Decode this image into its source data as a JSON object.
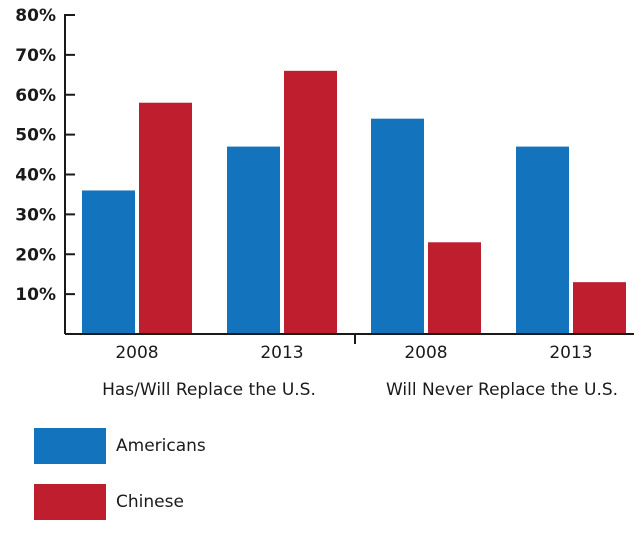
{
  "chart_data": {
    "type": "bar",
    "ylim": [
      0,
      80
    ],
    "yticks": [
      "10%",
      "20%",
      "30%",
      "40%",
      "50%",
      "60%",
      "70%",
      "80%"
    ],
    "categories": [
      "2008",
      "2013",
      "2008",
      "2013"
    ],
    "groups": [
      "Has/Will Replace the U.S.",
      "Will Never Replace the U.S."
    ],
    "series": [
      {
        "name": "Americans",
        "color": "#1473bd",
        "values": [
          36,
          47,
          54,
          47
        ]
      },
      {
        "name": "Chinese",
        "color": "#be1e2d",
        "values": [
          58,
          66,
          23,
          13
        ]
      }
    ],
    "legend": "bottom-left",
    "grid": false
  }
}
